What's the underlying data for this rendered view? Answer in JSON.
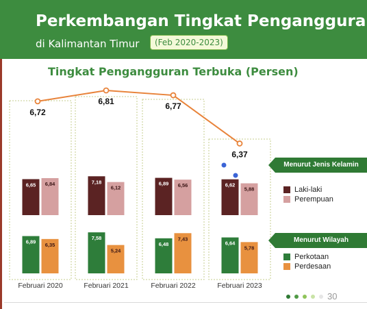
{
  "header": {
    "title": "Perkembangan Tingkat Pengangguran",
    "subtitle": "di Kalimantan Timur",
    "period": "(Feb 2020-2023)"
  },
  "legends": {
    "gender_tag": "Menurut Jenis Kelamin",
    "region_tag": "Menurut  Wilayah",
    "laki": "Laki-laki",
    "perempuan": "Perempuan",
    "perkotaan": "Perkotaan",
    "perdesaan": "Perdesaan"
  },
  "page": {
    "number": "30"
  },
  "chart_data": {
    "type": "bar",
    "title": "Tingkat Pengangguran Terbuka (Persen)",
    "categories": [
      "Februari 2020",
      "Februari 2021",
      "Februari 2022",
      "Februari 2023"
    ],
    "total": {
      "values": [
        6.72,
        6.81,
        6.77,
        6.37
      ],
      "labels": [
        "6,72",
        "6,81",
        "6,77",
        "6,37"
      ],
      "color": "#e8833a"
    },
    "series": [
      {
        "name": "Laki-laki",
        "group": "gender",
        "color": "#5b2323",
        "values": [
          6.65,
          7.18,
          6.89,
          6.62
        ],
        "labels": [
          "6,65",
          "7,18",
          "6,89",
          "6,62"
        ]
      },
      {
        "name": "Perempuan",
        "group": "gender",
        "color": "#d5a0a0",
        "values": [
          6.84,
          6.12,
          6.56,
          5.88
        ],
        "labels": [
          "6,84",
          "6,12",
          "6,56",
          "5,88"
        ]
      },
      {
        "name": "Perkotaan",
        "group": "region",
        "color": "#2e7d3a",
        "values": [
          6.89,
          7.58,
          6.48,
          6.64
        ],
        "labels": [
          "6,89",
          "7,58",
          "6,48",
          "6,64"
        ]
      },
      {
        "name": "Perdesaan",
        "group": "region",
        "color": "#e8913f",
        "values": [
          6.35,
          5.24,
          7.43,
          5.78
        ],
        "labels": [
          "6,35",
          "5,24",
          "7,43",
          "5,78"
        ]
      }
    ]
  }
}
